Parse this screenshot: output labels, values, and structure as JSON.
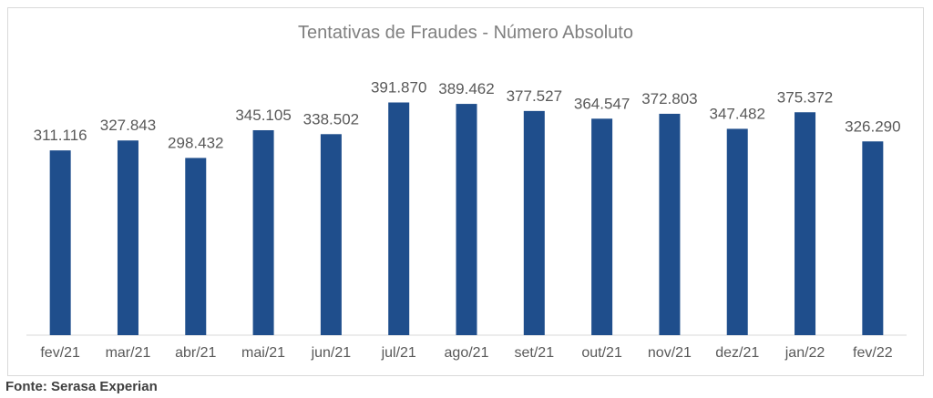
{
  "chart_data": {
    "type": "bar",
    "title": "Tentativas de Fraudes - Número Absoluto",
    "categories": [
      "fev/21",
      "mar/21",
      "abr/21",
      "mai/21",
      "jun/21",
      "jul/21",
      "ago/21",
      "set/21",
      "out/21",
      "nov/21",
      "dez/21",
      "jan/22",
      "fev/22"
    ],
    "values": [
      311116,
      327843,
      298432,
      345105,
      338502,
      391870,
      389462,
      377527,
      364547,
      372803,
      347482,
      375372,
      326290
    ],
    "data_labels": [
      "311.116",
      "327.843",
      "298.432",
      "345.105",
      "338.502",
      "391.870",
      "389.462",
      "377.527",
      "364.547",
      "372.803",
      "347.482",
      "375.372",
      "326.290"
    ],
    "ylim": [
      0,
      440000
    ],
    "xlabel": "",
    "ylabel": "",
    "grid": false,
    "legend": "none",
    "bar_color": "#1f4e8c",
    "label_color": "#595959",
    "axis_color": "#d9d9d9"
  },
  "source": "Fonte: Serasa Experian"
}
